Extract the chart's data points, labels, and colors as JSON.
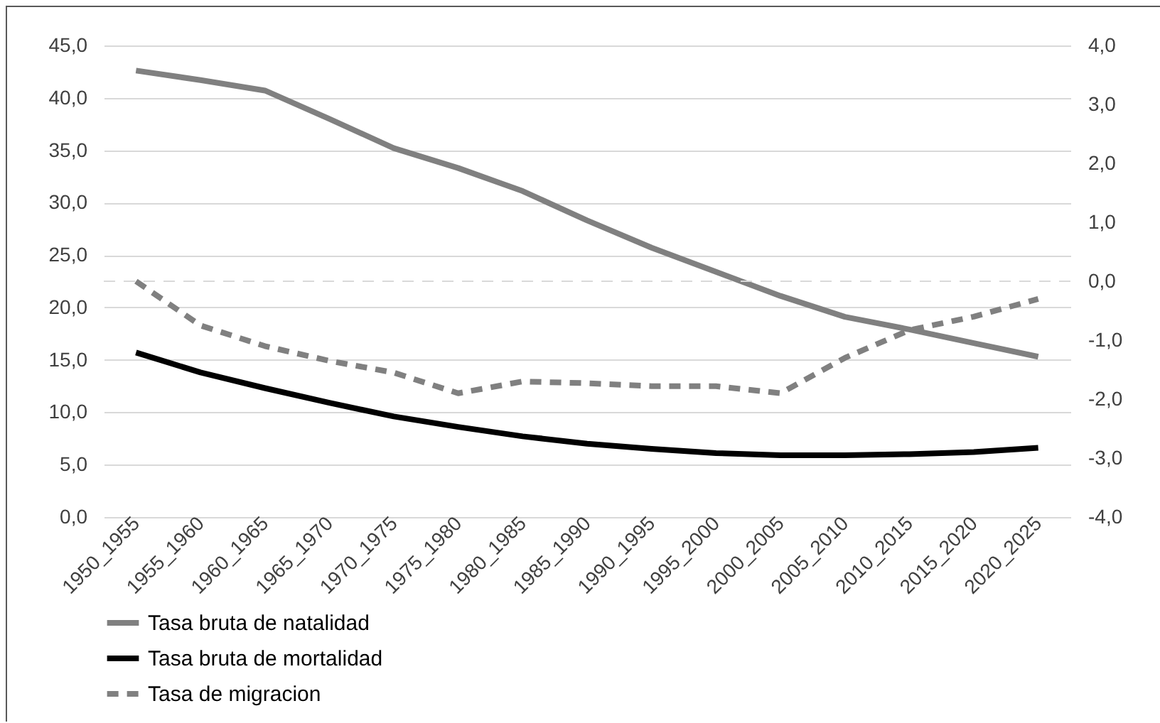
{
  "chart_data": {
    "type": "line",
    "categories": [
      "1950_1955",
      "1955_1960",
      "1960_1965",
      "1965_1970",
      "1970_1975",
      "1975_1980",
      "1980_1985",
      "1985_1990",
      "1990_1995",
      "1995_2000",
      "2000_2005",
      "2005_2010",
      "2010_2015",
      "2015_2020",
      "2020_2025"
    ],
    "series": [
      {
        "name": "Tasa bruta de natalidad",
        "color": "#808080",
        "values": [
          42.6,
          41.7,
          40.7,
          38.0,
          35.2,
          33.3,
          31.1,
          28.3,
          25.7,
          23.4,
          21.1,
          19.1,
          17.9,
          16.6,
          15.3
        ]
      },
      {
        "name": "Tasa bruta de mortalidad",
        "color": "#000000",
        "values": [
          15.7,
          13.8,
          12.3,
          10.9,
          9.6,
          8.6,
          7.7,
          7.0,
          6.5,
          6.1,
          5.9,
          5.9,
          6.0,
          6.2,
          6.6
        ]
      },
      {
        "name": "Tasa de migracion",
        "color": "#808080",
        "line_style": "dashed",
        "axis": "y2",
        "values": [
          0.0,
          -0.75,
          -1.1,
          -1.35,
          -1.55,
          -1.9,
          -1.7,
          -1.73,
          -1.78,
          -1.78,
          -1.9,
          -1.3,
          -0.83,
          -0.6,
          -0.3
        ]
      }
    ],
    "ylim": [
      0,
      45
    ],
    "yticks": [
      {
        "value": 0,
        "label": "0,0"
      },
      {
        "value": 5,
        "label": "5,0"
      },
      {
        "value": 10,
        "label": "10,0"
      },
      {
        "value": 15,
        "label": "15,0"
      },
      {
        "value": 20,
        "label": "20,0"
      },
      {
        "value": 25,
        "label": "25,0"
      },
      {
        "value": 30,
        "label": "30,0"
      },
      {
        "value": 35,
        "label": "35,0"
      },
      {
        "value": 40,
        "label": "40,0"
      },
      {
        "value": 45,
        "label": "45,0"
      }
    ],
    "y2lim": [
      -4,
      4
    ],
    "y2ticks": [
      {
        "value": -4,
        "label": "-4,0"
      },
      {
        "value": -3,
        "label": "-3,0"
      },
      {
        "value": -2,
        "label": "-2,0"
      },
      {
        "value": -1,
        "label": "-1,0"
      },
      {
        "value": 0,
        "label": "0,0"
      },
      {
        "value": 1,
        "label": "1,0"
      },
      {
        "value": 2,
        "label": "2,0"
      },
      {
        "value": 3,
        "label": "3,0"
      },
      {
        "value": 4,
        "label": "4,0"
      }
    ],
    "ref_lines": [
      {
        "axis": "y2",
        "value": 0,
        "color": "#d9d9d9",
        "line_style": "dashed"
      }
    ],
    "grid": "y",
    "legend": "bottom",
    "marker": "none"
  }
}
